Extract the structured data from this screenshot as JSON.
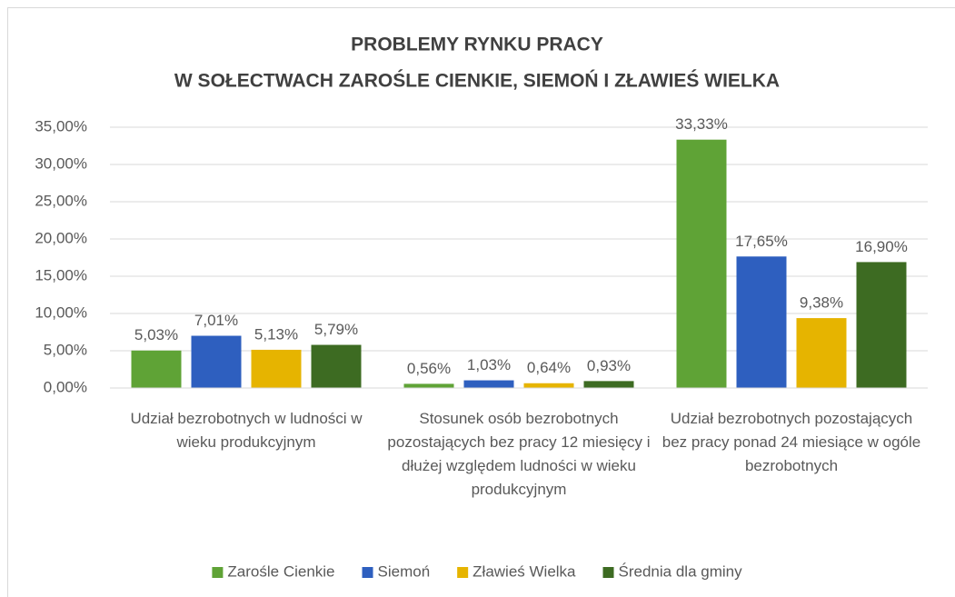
{
  "chart_data": {
    "type": "bar",
    "title": [
      "PROBLEMY RYNKU PRACY",
      "W SOŁECTWACH ZAROŚLE CIENKIE, SIEMOŃ I ZŁAWIEŚ WIELKA"
    ],
    "categories": [
      "Udział bezrobotnych w ludności w wieku produkcyjnym",
      "Stosunek osób bezrobotnych pozostających bez pracy 12 miesięcy i dłużej względem ludności w wieku produkcyjnym",
      "Udział bezrobotnych pozostających bez pracy ponad 24 miesiące w ogóle bezrobotnych"
    ],
    "series": [
      {
        "name": "Zarośle Cienkie",
        "color": "#5fa336",
        "values": [
          5.03,
          0.56,
          33.33
        ],
        "value_labels": [
          "5,03%",
          "0,56%",
          "33,33%"
        ]
      },
      {
        "name": "Siemoń",
        "color": "#2e5fbf",
        "values": [
          7.01,
          1.03,
          17.65
        ],
        "value_labels": [
          "7,01%",
          "1,03%",
          "17,65%"
        ]
      },
      {
        "name": "Zławieś Wielka",
        "color": "#e6b400",
        "values": [
          5.13,
          0.64,
          9.38
        ],
        "value_labels": [
          "5,13%",
          "0,64%",
          "9,38%"
        ]
      },
      {
        "name": "Średnia dla gminy",
        "color": "#3d6b22",
        "values": [
          5.79,
          0.93,
          16.9
        ],
        "value_labels": [
          "5,79%",
          "0,93%",
          "16,90%"
        ]
      }
    ],
    "ylim": [
      0,
      35
    ],
    "yticks": [
      {
        "value": 0,
        "label": "0,00%"
      },
      {
        "value": 5,
        "label": "5,00%"
      },
      {
        "value": 10,
        "label": "10,00%"
      },
      {
        "value": 15,
        "label": "15,00%"
      },
      {
        "value": 20,
        "label": "20,00%"
      },
      {
        "value": 25,
        "label": "25,00%"
      },
      {
        "value": 30,
        "label": "30,00%"
      },
      {
        "value": 35,
        "label": "35,00%"
      }
    ],
    "grid": true,
    "legend": "bottom"
  }
}
